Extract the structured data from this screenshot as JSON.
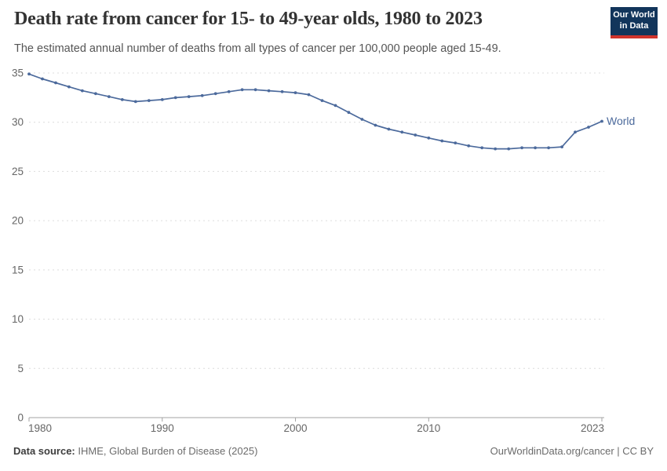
{
  "header": {
    "title": "Death rate from cancer for 15- to 49-year olds, 1980 to 2023",
    "subtitle": "The estimated annual number of deaths from all types of cancer per 100,000 people aged 15-49.",
    "logo": {
      "line1": "Our World",
      "line2": "in Data",
      "bg_color": "#12355b",
      "accent_color": "#d0342c"
    }
  },
  "chart_data": {
    "type": "line",
    "title": "Death rate from cancer for 15- to 49-year olds, 1980 to 2023",
    "xlabel": "",
    "ylabel": "",
    "x": [
      1980,
      1981,
      1982,
      1983,
      1984,
      1985,
      1986,
      1987,
      1988,
      1989,
      1990,
      1991,
      1992,
      1993,
      1994,
      1995,
      1996,
      1997,
      1998,
      1999,
      2000,
      2001,
      2002,
      2003,
      2004,
      2005,
      2006,
      2007,
      2008,
      2009,
      2010,
      2011,
      2012,
      2013,
      2014,
      2015,
      2016,
      2017,
      2018,
      2019,
      2020,
      2021,
      2022,
      2023
    ],
    "series": [
      {
        "name": "World",
        "color": "#4c6a9c",
        "values": [
          34.9,
          34.4,
          34.0,
          33.6,
          33.2,
          32.9,
          32.6,
          32.3,
          32.1,
          32.2,
          32.3,
          32.5,
          32.6,
          32.7,
          32.9,
          33.1,
          33.3,
          33.3,
          33.2,
          33.1,
          33.0,
          32.8,
          32.2,
          31.7,
          31.0,
          30.3,
          29.7,
          29.3,
          29.0,
          28.7,
          28.4,
          28.1,
          27.9,
          27.6,
          27.4,
          27.3,
          27.3,
          27.4,
          27.4,
          27.4,
          27.5,
          29.0,
          29.5,
          30.1
        ]
      }
    ],
    "x_ticks": [
      1980,
      1990,
      2000,
      2010,
      2023
    ],
    "y_ticks": [
      0,
      5,
      10,
      15,
      20,
      25,
      30,
      35
    ],
    "xlim": [
      1980,
      2023
    ],
    "ylim": [
      0,
      35
    ],
    "grid": "horizontal-dashed",
    "legend": "end-of-line-label",
    "end_label": "World",
    "grid_color": "#dcdcdc",
    "axis_color": "#a3a3a3",
    "tick_label_color": "#666666"
  },
  "footer": {
    "data_source_label": "Data source:",
    "data_source_value": " IHME, Global Burden of Disease (2025)",
    "credit": "OurWorldinData.org/cancer | CC BY"
  }
}
